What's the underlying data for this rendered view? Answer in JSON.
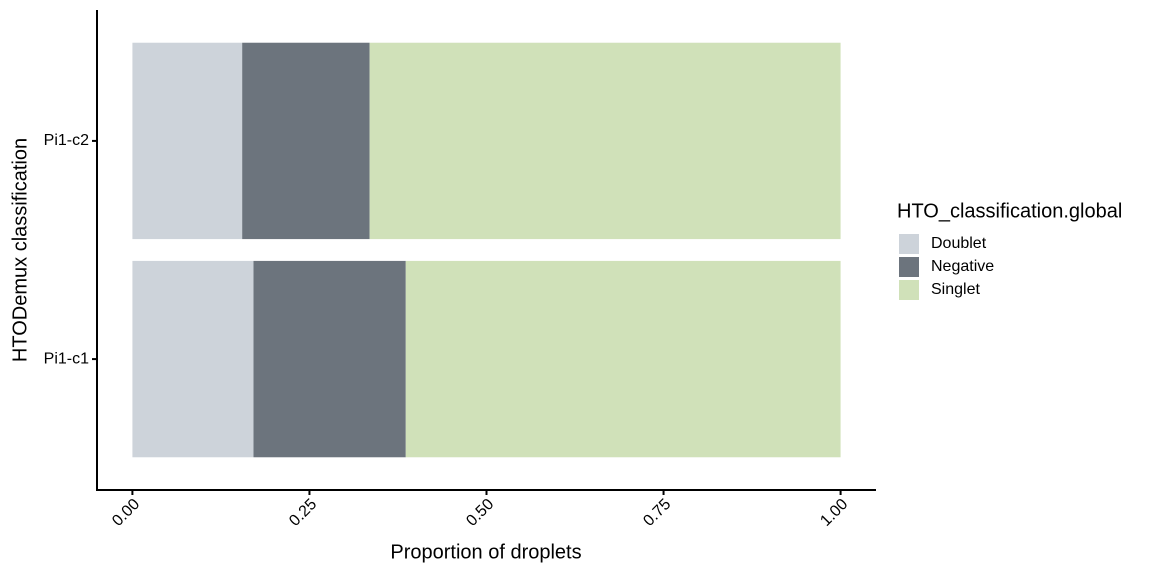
{
  "chart_data": {
    "type": "stacked-horizontal-bar",
    "categories": [
      "Pi1-c1",
      "Pi1-c2"
    ],
    "series": [
      {
        "name": "Doublet",
        "color": "#cdd3da",
        "values": [
          0.171,
          0.155
        ]
      },
      {
        "name": "Negative",
        "color": "#6c747d",
        "values": [
          0.215,
          0.18
        ]
      },
      {
        "name": "Singlet",
        "color": "#d0e1b9",
        "values": [
          0.614,
          0.665
        ]
      }
    ],
    "xlim": [
      -0.05,
      1.05
    ],
    "xticks": [
      {
        "value": 0,
        "label": "0.00"
      },
      {
        "value": 0.25,
        "label": "0.25"
      },
      {
        "value": 0.5,
        "label": "0.50"
      },
      {
        "value": 0.75,
        "label": "0.75"
      },
      {
        "value": 1,
        "label": "1.00"
      }
    ],
    "x_label": "Proportion of droplets",
    "y_label": "HTODemux classification",
    "legend_title": "HTO_classification.global",
    "legend": "right",
    "grid": false
  }
}
